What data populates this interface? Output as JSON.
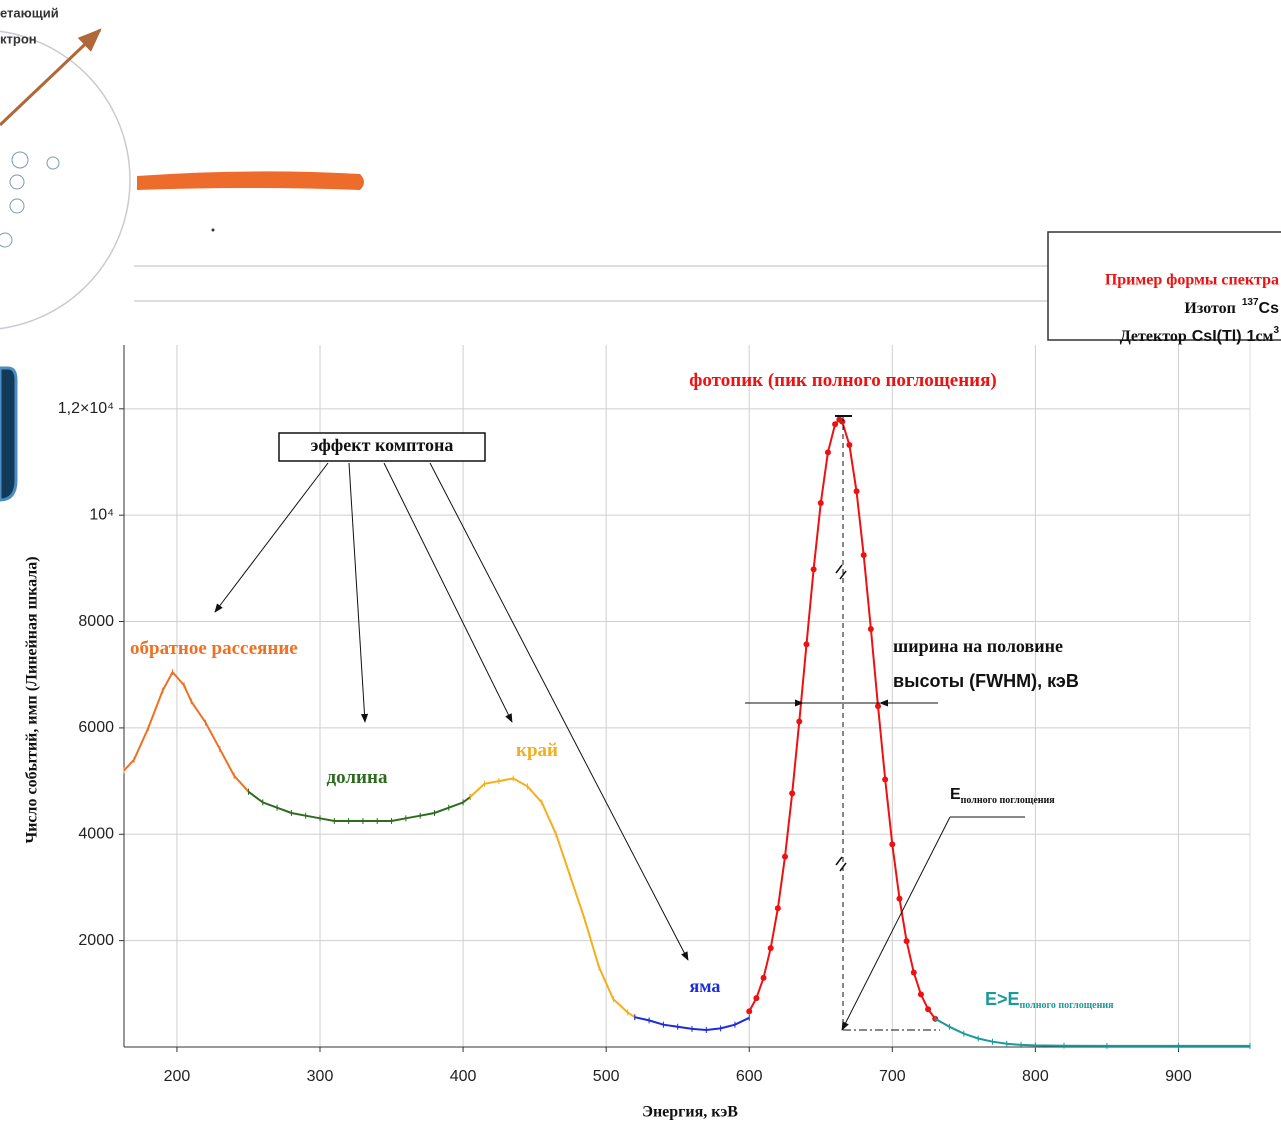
{
  "chart_data": {
    "type": "line",
    "xlabel": "Энергия, кэВ",
    "ylabel": "Число событий, имп (Линейная шкала)",
    "xlim": [
      163,
      950
    ],
    "ylim": [
      0,
      13200
    ],
    "xticks": [
      200,
      300,
      400,
      500,
      600,
      700,
      800,
      900
    ],
    "yticks": [
      2000,
      4000,
      6000,
      8000,
      {
        "value": 10000,
        "label": "10⁴"
      },
      {
        "value": 12000,
        "label": "1,2×10⁴"
      }
    ],
    "grid": true,
    "series": [
      {
        "color": "#f07022",
        "x": [
          163,
          170,
          180,
          190,
          197,
          205,
          210,
          220,
          230,
          240,
          250
        ],
        "values": [
          5200,
          5400,
          6000,
          6700,
          7050,
          6800,
          6500,
          6100,
          5600,
          5100,
          4800
        ]
      },
      {
        "color": "#2e6b1f",
        "x": [
          250,
          260,
          270,
          280,
          290,
          300,
          310,
          320,
          330,
          340,
          350,
          360,
          370,
          380,
          390,
          400,
          405
        ],
        "values": [
          4800,
          4600,
          4500,
          4400,
          4350,
          4300,
          4250,
          4250,
          4250,
          4250,
          4250,
          4300,
          4350,
          4400,
          4500,
          4600,
          4700
        ]
      },
      {
        "color": "#f5ae1c",
        "x": [
          405,
          415,
          425,
          435,
          445,
          455,
          465,
          475,
          485,
          495,
          505,
          515,
          520
        ],
        "values": [
          4700,
          4950,
          5000,
          5050,
          4900,
          4600,
          4000,
          3200,
          2400,
          1500,
          900,
          650,
          560
        ]
      },
      {
        "color": "#1c2be0",
        "x": [
          520,
          530,
          540,
          550,
          560,
          570,
          580,
          590,
          600
        ],
        "values": [
          560,
          500,
          420,
          380,
          340,
          320,
          350,
          420,
          550
        ]
      },
      {
        "color": "#ee1111",
        "markers": true,
        "x": [
          600,
          605,
          610,
          615,
          620,
          625,
          630,
          635,
          640,
          645,
          650,
          655,
          660,
          663,
          665,
          670,
          675,
          680,
          685,
          690,
          695,
          700,
          705,
          710,
          715,
          720,
          725,
          730
        ],
        "values": [
          670,
          920,
          1300,
          1860,
          2610,
          3580,
          4770,
          6120,
          7570,
          8980,
          10230,
          11180,
          11710,
          11800,
          11760,
          11320,
          10450,
          9250,
          7860,
          6410,
          5030,
          3810,
          2790,
          1990,
          1400,
          990,
          710,
          530
        ]
      },
      {
        "color": "#1a9a9a",
        "x": [
          730,
          740,
          750,
          760,
          770,
          780,
          790,
          800,
          820,
          850,
          900,
          950
        ],
        "values": [
          530,
          380,
          250,
          160,
          100,
          60,
          40,
          30,
          25,
          20,
          20,
          20
        ]
      }
    ],
    "annotations": [
      {
        "text": "обратное рассеяние"
      },
      {
        "text": "долина"
      },
      {
        "text": "край"
      },
      {
        "text": "яма"
      },
      {
        "text": "фотопик (пик полного поглощения)"
      },
      {
        "text": "E>E",
        "sub": "полного поглощения"
      },
      {
        "text": "эффект комптона"
      },
      {
        "text": "ширина на половине",
        "line2": "высоты (FWHM), кэВ"
      },
      {
        "text": "E",
        "sub": "полного поглощения"
      }
    ],
    "legend": {
      "title": "Пример формы спектра",
      "isotope": "Изотоп",
      "mass": "137",
      "element": "Cs",
      "detector": "Детектор",
      "crystal": "CsI(Tl)",
      "size": "1",
      "unit": "см",
      "power": "3"
    },
    "fragments": [
      "етающий",
      "ктрон"
    ]
  }
}
